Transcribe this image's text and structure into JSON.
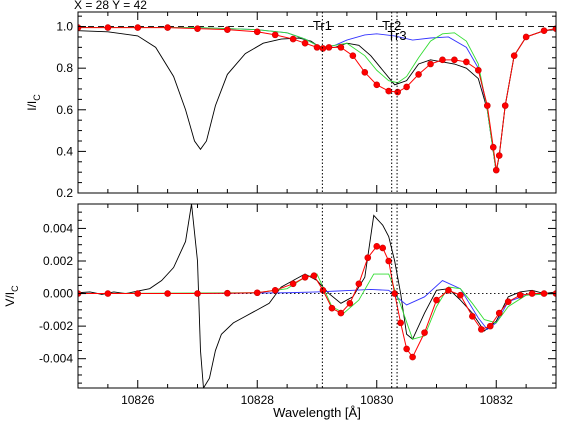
{
  "header": {
    "coords_label": "X = 28 Y = 42"
  },
  "chart_data": [
    {
      "type": "line",
      "panel": "top",
      "ylabel": "I/I_C",
      "xlim": [
        10825,
        10833
      ],
      "ylim": [
        0.2,
        1.07
      ],
      "xticks": [
        10826,
        10828,
        10830,
        10832
      ],
      "yticks": [
        0.2,
        0.4,
        0.6,
        0.8,
        1.0
      ],
      "ytick_labels": [
        "0.2",
        "0.4",
        "0.6",
        "0.8",
        "1.0"
      ],
      "reference_line": {
        "y": 1.0,
        "style": "dashed"
      },
      "vertical_markers": [
        {
          "label": "Tr1",
          "x": 10829.09
        },
        {
          "label": "Tr2",
          "x": 10830.25
        },
        {
          "label": "Tr3",
          "x": 10830.34
        }
      ],
      "series": [
        {
          "color": "#000000",
          "style": "line",
          "x": [
            10825,
            10825.5,
            10826,
            10826.3,
            10826.6,
            10826.8,
            10826.95,
            10827.05,
            10827.15,
            10827.3,
            10827.5,
            10827.8,
            10828.1,
            10828.4,
            10828.7,
            10828.9,
            10829.0,
            10829.1,
            10829.3,
            10829.5,
            10829.7,
            10829.9,
            10830.1,
            10830.3,
            10830.5,
            10830.7,
            10830.9,
            10831.1,
            10831.3,
            10831.5,
            10831.7,
            10831.85,
            10831.95,
            10832.0,
            10832.05,
            10832.15,
            10832.3,
            10832.5,
            10832.8,
            10833
          ],
          "y": [
            0.98,
            0.975,
            0.955,
            0.9,
            0.76,
            0.6,
            0.45,
            0.41,
            0.45,
            0.62,
            0.77,
            0.87,
            0.92,
            0.94,
            0.945,
            0.93,
            0.91,
            0.895,
            0.9,
            0.92,
            0.91,
            0.86,
            0.79,
            0.72,
            0.74,
            0.82,
            0.84,
            0.83,
            0.82,
            0.8,
            0.75,
            0.6,
            0.4,
            0.3,
            0.38,
            0.62,
            0.86,
            0.95,
            0.98,
            0.985
          ]
        },
        {
          "color": "#3333ff",
          "style": "line",
          "x": [
            10825,
            10826,
            10827,
            10828,
            10828.5,
            10828.8,
            10829.0,
            10829.1,
            10829.3,
            10829.5,
            10829.8,
            10830.0,
            10830.3,
            10830.6,
            10830.9,
            10831.2,
            10831.5,
            10831.7,
            10831.85,
            10831.95,
            10832.0,
            10832.05,
            10832.15,
            10832.3,
            10832.5,
            10832.8,
            10833
          ],
          "y": [
            0.995,
            0.995,
            0.995,
            0.985,
            0.97,
            0.94,
            0.91,
            0.9,
            0.91,
            0.935,
            0.96,
            0.965,
            0.955,
            0.935,
            0.945,
            0.95,
            0.9,
            0.8,
            0.6,
            0.4,
            0.3,
            0.38,
            0.62,
            0.86,
            0.95,
            0.98,
            0.99
          ]
        },
        {
          "color": "#33dd33",
          "style": "line",
          "x": [
            10825,
            10826,
            10827,
            10828,
            10828.5,
            10828.8,
            10829.0,
            10829.1,
            10829.3,
            10829.5,
            10829.8,
            10830.0,
            10830.2,
            10830.35,
            10830.5,
            10830.7,
            10830.9,
            10831.1,
            10831.3,
            10831.5,
            10831.7,
            10831.85,
            10831.95,
            10832.0,
            10832.05,
            10832.15,
            10832.3,
            10832.5,
            10832.8,
            10833
          ],
          "y": [
            0.995,
            0.995,
            0.995,
            0.985,
            0.97,
            0.94,
            0.91,
            0.9,
            0.91,
            0.92,
            0.86,
            0.79,
            0.74,
            0.73,
            0.76,
            0.85,
            0.93,
            0.965,
            0.97,
            0.93,
            0.82,
            0.6,
            0.4,
            0.3,
            0.38,
            0.62,
            0.86,
            0.95,
            0.98,
            0.99
          ]
        },
        {
          "color": "#ff0000",
          "style": "markers",
          "x": [
            10825,
            10825.5,
            10826,
            10826.5,
            10827,
            10827.5,
            10828,
            10828.3,
            10828.6,
            10828.8,
            10829.0,
            10829.1,
            10829.2,
            10829.4,
            10829.6,
            10829.8,
            10830.0,
            10830.2,
            10830.35,
            10830.5,
            10830.7,
            10830.9,
            10831.1,
            10831.3,
            10831.5,
            10831.7,
            10831.85,
            10831.95,
            10832.0,
            10832.05,
            10832.15,
            10832.3,
            10832.5,
            10832.8,
            10833
          ],
          "y": [
            0.995,
            0.995,
            0.995,
            0.995,
            0.99,
            0.985,
            0.975,
            0.96,
            0.94,
            0.92,
            0.9,
            0.895,
            0.9,
            0.9,
            0.86,
            0.78,
            0.72,
            0.69,
            0.685,
            0.71,
            0.77,
            0.82,
            0.84,
            0.84,
            0.83,
            0.79,
            0.62,
            0.42,
            0.31,
            0.38,
            0.62,
            0.86,
            0.95,
            0.98,
            0.99
          ]
        }
      ]
    },
    {
      "type": "line",
      "panel": "bottom",
      "xlabel": "Wavelength [Å]",
      "ylabel": "V/I_C",
      "xlim": [
        10825,
        10833
      ],
      "ylim": [
        -0.0058,
        0.0055
      ],
      "xticks": [
        10826,
        10828,
        10830,
        10832
      ],
      "xtick_labels": [
        "10826",
        "10828",
        "10830",
        "10832"
      ],
      "yticks": [
        -0.004,
        -0.002,
        0.0,
        0.002,
        0.004
      ],
      "ytick_labels": [
        "-0.004",
        "-0.002",
        "0.000",
        "0.002",
        "0.004"
      ],
      "reference_line": {
        "y": 0.0,
        "style": "dotted"
      },
      "vertical_markers": [
        {
          "x": 10829.09
        },
        {
          "x": 10830.25
        },
        {
          "x": 10830.34
        }
      ],
      "series": [
        {
          "color": "#000000",
          "style": "line",
          "x": [
            10825,
            10825.2,
            10825.4,
            10825.6,
            10825.8,
            10826.0,
            10826.2,
            10826.4,
            10826.6,
            10826.8,
            10826.9,
            10827.0,
            10827.05,
            10827.1,
            10827.2,
            10827.3,
            10827.4,
            10827.6,
            10827.8,
            10828.0,
            10828.2,
            10828.4,
            10828.6,
            10828.8,
            10829.0,
            10829.2,
            10829.4,
            10829.6,
            10829.8,
            10829.95,
            10830.1,
            10830.2,
            10830.3,
            10830.4,
            10830.5,
            10830.6,
            10830.8,
            10831.0,
            10831.2,
            10831.4,
            10831.6,
            10831.8,
            10832.0,
            10832.2,
            10832.4,
            10832.6,
            10832.8,
            10833
          ],
          "y": [
            5e-05,
            0.0001,
            -5e-05,
            0.0001,
            0.0,
            0.00015,
            0.0003,
            0.0008,
            0.0016,
            0.0032,
            0.0055,
            0.002,
            -0.0035,
            -0.0058,
            -0.0052,
            -0.0035,
            -0.0025,
            -0.0018,
            -0.0014,
            -0.001,
            -0.0006,
            0.0004,
            0.0008,
            0.0012,
            0.0008,
            0.0,
            -0.0006,
            -0.0002,
            0.001,
            0.0048,
            0.0042,
            0.0035,
            0.002,
            0.0,
            -0.0025,
            -0.0028,
            -0.0012,
            0.0002,
            0.0003,
            -0.0004,
            -0.0012,
            -0.0023,
            -0.0017,
            -0.0002,
            0.0001,
            0.0002,
            0.0,
            0.0001
          ]
        },
        {
          "color": "#3333ff",
          "style": "line",
          "x": [
            10825,
            10827,
            10828.5,
            10829.0,
            10829.3,
            10829.6,
            10829.9,
            10830.2,
            10830.5,
            10830.8,
            10831.1,
            10831.4,
            10831.7,
            10831.85,
            10832.0,
            10832.2,
            10832.5,
            10833
          ],
          "y": [
            0.0,
            0.0,
            5e-05,
            0.0001,
            0.00015,
            0.0002,
            0.00025,
            0.0002,
            -0.0007,
            -0.0002,
            0.0008,
            0.0003,
            -0.0015,
            -0.0022,
            -0.0018,
            -0.0005,
            -0.0001,
            0.0
          ]
        },
        {
          "color": "#33dd33",
          "style": "line",
          "x": [
            10825,
            10828,
            10828.5,
            10828.8,
            10829.0,
            10829.1,
            10829.25,
            10829.45,
            10829.7,
            10829.95,
            10830.2,
            10830.4,
            10830.6,
            10830.8,
            10831.0,
            10831.2,
            10831.4,
            10831.6,
            10831.8,
            10832.0,
            10832.2,
            10832.5,
            10833
          ],
          "y": [
            0.0,
            5e-05,
            0.0003,
            0.001,
            0.0012,
            0.0004,
            -0.0008,
            -0.0012,
            -0.0004,
            0.0012,
            0.0012,
            -0.0007,
            -0.0028,
            -0.0026,
            -0.0008,
            0.0004,
            0.0003,
            -0.0006,
            -0.0016,
            -0.0018,
            -0.0008,
            -0.0001,
            0.0
          ]
        },
        {
          "color": "#ff0000",
          "style": "markers",
          "x": [
            10825,
            10825.5,
            10826,
            10826.5,
            10827,
            10827.5,
            10828,
            10828.3,
            10828.6,
            10828.8,
            10828.95,
            10829.1,
            10829.25,
            10829.4,
            10829.55,
            10829.7,
            10829.85,
            10830.0,
            10830.1,
            10830.2,
            10830.3,
            10830.4,
            10830.5,
            10830.6,
            10830.8,
            10831.0,
            10831.2,
            10831.4,
            10831.6,
            10831.75,
            10831.9,
            10832.05,
            10832.2,
            10832.4,
            10832.6,
            10832.8,
            10833
          ],
          "y": [
            0.0,
            0.0,
            0.0,
            0.0,
            0.0,
            2e-05,
            5e-05,
            0.0002,
            0.0006,
            0.001,
            0.0011,
            0.0002,
            -0.0009,
            -0.0012,
            -0.0006,
            0.0006,
            0.0022,
            0.0029,
            0.0028,
            0.002,
            0.0,
            -0.0018,
            -0.0034,
            -0.0039,
            -0.0024,
            -0.0004,
            0.0002,
            -0.0001,
            -0.0014,
            -0.0022,
            -0.002,
            -0.0012,
            -0.0005,
            -0.0001,
            0.0,
            0.0,
            0.0
          ]
        }
      ]
    }
  ]
}
